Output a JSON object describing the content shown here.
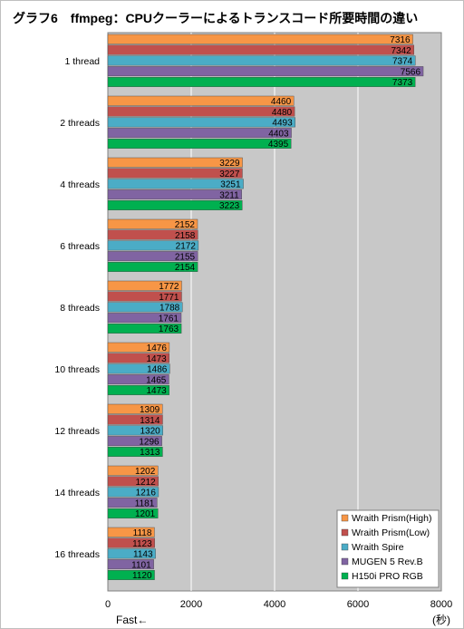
{
  "title": "グラフ6　ffmpeg：CPUクーラーによるトランスコード所要時間の違い",
  "colors": {
    "plot_bg": "#c8c8c8",
    "gridline": "#ffffff",
    "series": [
      "#f79646",
      "#c0504d",
      "#4bacc6",
      "#8064a2",
      "#00b050"
    ]
  },
  "chart_data": {
    "type": "bar",
    "orientation": "horizontal",
    "title": "グラフ6　ffmpeg：CPUクーラーによるトランスコード所要時間の違い",
    "categories": [
      "1 thread",
      "2 threads",
      "4 threads",
      "6 threads",
      "8 threads",
      "10 threads",
      "12 threads",
      "14 threads",
      "16 threads"
    ],
    "series": [
      {
        "name": "Wraith Prism(High)",
        "values": [
          7316,
          4460,
          3229,
          2152,
          1772,
          1476,
          1309,
          1202,
          1118
        ]
      },
      {
        "name": "Wraith Prism(Low)",
        "values": [
          7342,
          4480,
          3227,
          2158,
          1771,
          1473,
          1314,
          1212,
          1123
        ]
      },
      {
        "name": "Wraith Spire",
        "values": [
          7374,
          4493,
          3251,
          2172,
          1788,
          1486,
          1320,
          1216,
          1143
        ]
      },
      {
        "name": "MUGEN 5 Rev.B",
        "values": [
          7566,
          4403,
          3211,
          2155,
          1761,
          1465,
          1296,
          1181,
          1101
        ]
      },
      {
        "name": "H150i PRO RGB",
        "values": [
          7373,
          4395,
          3223,
          2154,
          1763,
          1473,
          1313,
          1201,
          1120
        ]
      }
    ],
    "xlim": [
      0,
      8000
    ],
    "xticks": [
      0,
      2000,
      4000,
      6000,
      8000
    ],
    "xlabel_left": "Fast←",
    "xlabel_unit": "(秒)",
    "grid": true,
    "legend": "bottom-right"
  }
}
